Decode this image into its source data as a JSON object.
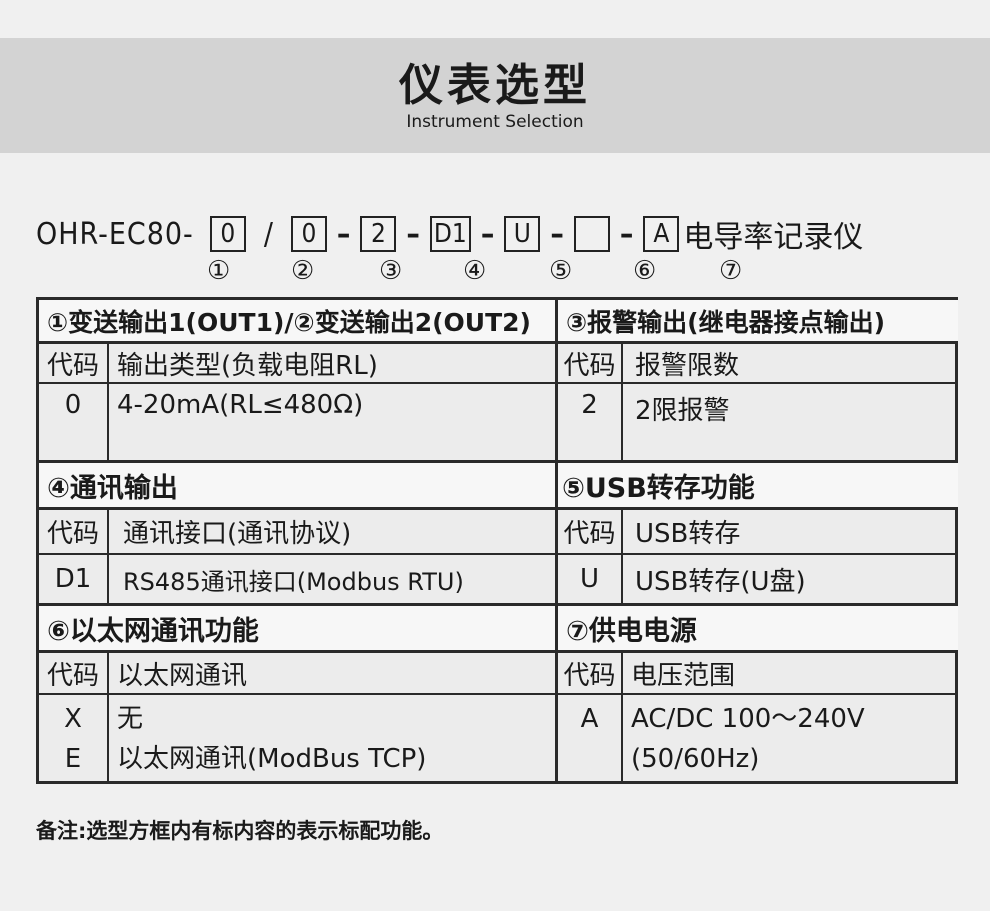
{
  "header": {
    "title": "仪表选型",
    "subtitle": "Instrument Selection"
  },
  "model": {
    "prefix": "OHR-EC80-",
    "boxes": [
      "0",
      "0",
      "2",
      "D1",
      "U",
      "",
      "A"
    ],
    "separators": [
      "/",
      "–",
      "–",
      "–",
      "–",
      "–"
    ],
    "suffix": "电导率记录仪",
    "markers": [
      "①",
      "②",
      "③",
      "④",
      "⑤",
      "⑥",
      "⑦"
    ]
  },
  "sections": {
    "s1": {
      "title": "①变送输出1(OUT1)/②变送输出2(OUT2)",
      "code_header": "代码",
      "desc_header": "输出类型(负载电阻RL)",
      "rows": [
        {
          "code": "0",
          "desc": "4-20mA(RL≤480Ω)"
        }
      ]
    },
    "s3": {
      "title": "③报警输出(继电器接点输出)",
      "code_header": "代码",
      "desc_header": "报警限数",
      "rows": [
        {
          "code": "2",
          "desc": "2限报警"
        }
      ]
    },
    "s4": {
      "title": "④通讯输出",
      "code_header": "代码",
      "desc_header": "通讯接口(通讯协议)",
      "rows": [
        {
          "code": "D1",
          "desc": "RS485通讯接口(Modbus RTU)"
        }
      ]
    },
    "s5": {
      "title": "⑤USB转存功能",
      "code_header": "代码",
      "desc_header": "USB转存",
      "rows": [
        {
          "code": "U",
          "desc": "USB转存(U盘)"
        }
      ]
    },
    "s6": {
      "title": "⑥以太网通讯功能",
      "code_header": "代码",
      "desc_header": "以太网通讯",
      "rows": [
        {
          "code": "X",
          "desc": "无"
        },
        {
          "code": "E",
          "desc": "以太网通讯(ModBus TCP)"
        }
      ]
    },
    "s7": {
      "title": "⑦供电电源",
      "code_header": "代码",
      "desc_header": "电压范围",
      "rows": [
        {
          "code": "A",
          "desc": "AC/DC 100～240V"
        },
        {
          "code": "",
          "desc": "(50/60Hz)"
        }
      ]
    }
  },
  "note": "备注:选型方框内有标内容的表示标配功能。"
}
